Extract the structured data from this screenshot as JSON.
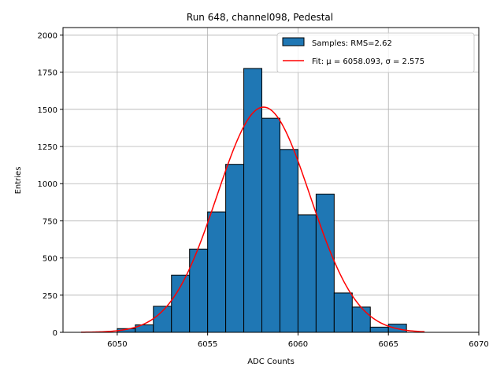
{
  "chart_data": {
    "type": "bar",
    "title": "Run 648, channel098, Pedestal",
    "xlabel": "ADC Counts",
    "ylabel": "Entries",
    "xlim": [
      6047,
      6070
    ],
    "ylim": [
      0,
      2050
    ],
    "grid": true,
    "legend_position": "top-right",
    "x_ticks": [
      "6050",
      "6055",
      "6060",
      "6065",
      "6070"
    ],
    "y_ticks": [
      "0",
      "250",
      "500",
      "750",
      "1000",
      "1250",
      "1500",
      "1750",
      "2000"
    ],
    "histogram": {
      "name": "Samples: RMS=2.62",
      "bin_width": 1,
      "bin_starts": [
        6050,
        6051,
        6052,
        6053,
        6054,
        6055,
        6056,
        6057,
        6058,
        6059,
        6060,
        6061,
        6062,
        6063,
        6064,
        6065
      ],
      "values": [
        25,
        50,
        175,
        385,
        560,
        810,
        1130,
        1775,
        1440,
        1230,
        790,
        930,
        265,
        170,
        35,
        55
      ],
      "color": "#1f77b4",
      "edge_color": "#000000"
    },
    "fit": {
      "name": "Fit: μ = 6058.093, σ = 2.575",
      "mu": 6058.093,
      "sigma": 2.575,
      "amplitude": 1515,
      "x_range": [
        6048,
        6067
      ],
      "color": "#ff0000"
    }
  }
}
